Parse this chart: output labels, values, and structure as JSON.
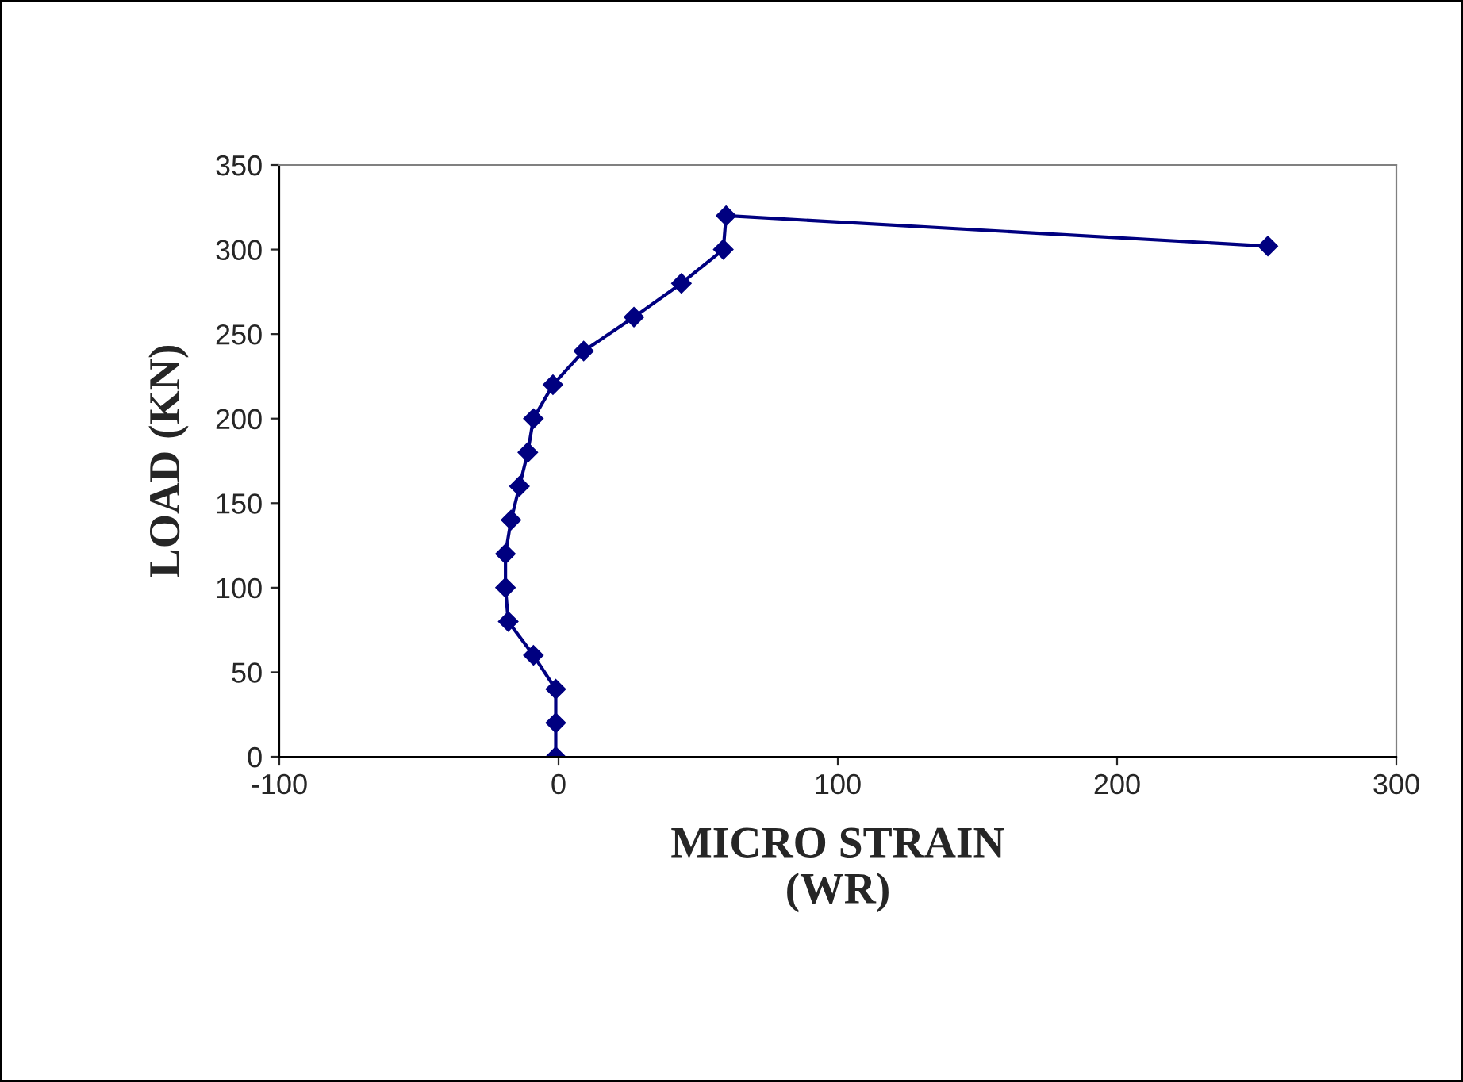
{
  "chart_data": {
    "type": "line",
    "xlabel": "MICRO STRAIN\n(WR)",
    "ylabel": "LOAD (KN)",
    "series": [
      {
        "color": "#000080",
        "x": [
          -1,
          -1,
          -1,
          -9,
          -18,
          -19,
          -19,
          -17,
          -14,
          -11,
          -9,
          -2,
          9,
          27,
          44,
          59,
          60,
          254
        ],
        "values": [
          0,
          20,
          40,
          60,
          80,
          100,
          120,
          140,
          160,
          180,
          200,
          220,
          240,
          260,
          280,
          300,
          320,
          302
        ]
      }
    ],
    "xlim": [
      -100,
      300
    ],
    "xticks": [
      -100,
      0,
      100,
      200,
      300
    ],
    "ylim": [
      0,
      350
    ],
    "yticks": [
      0,
      50,
      100,
      150,
      200,
      250,
      300,
      350
    ],
    "marker": "diamond",
    "line_style": "solid",
    "grid": false,
    "legend": false
  }
}
